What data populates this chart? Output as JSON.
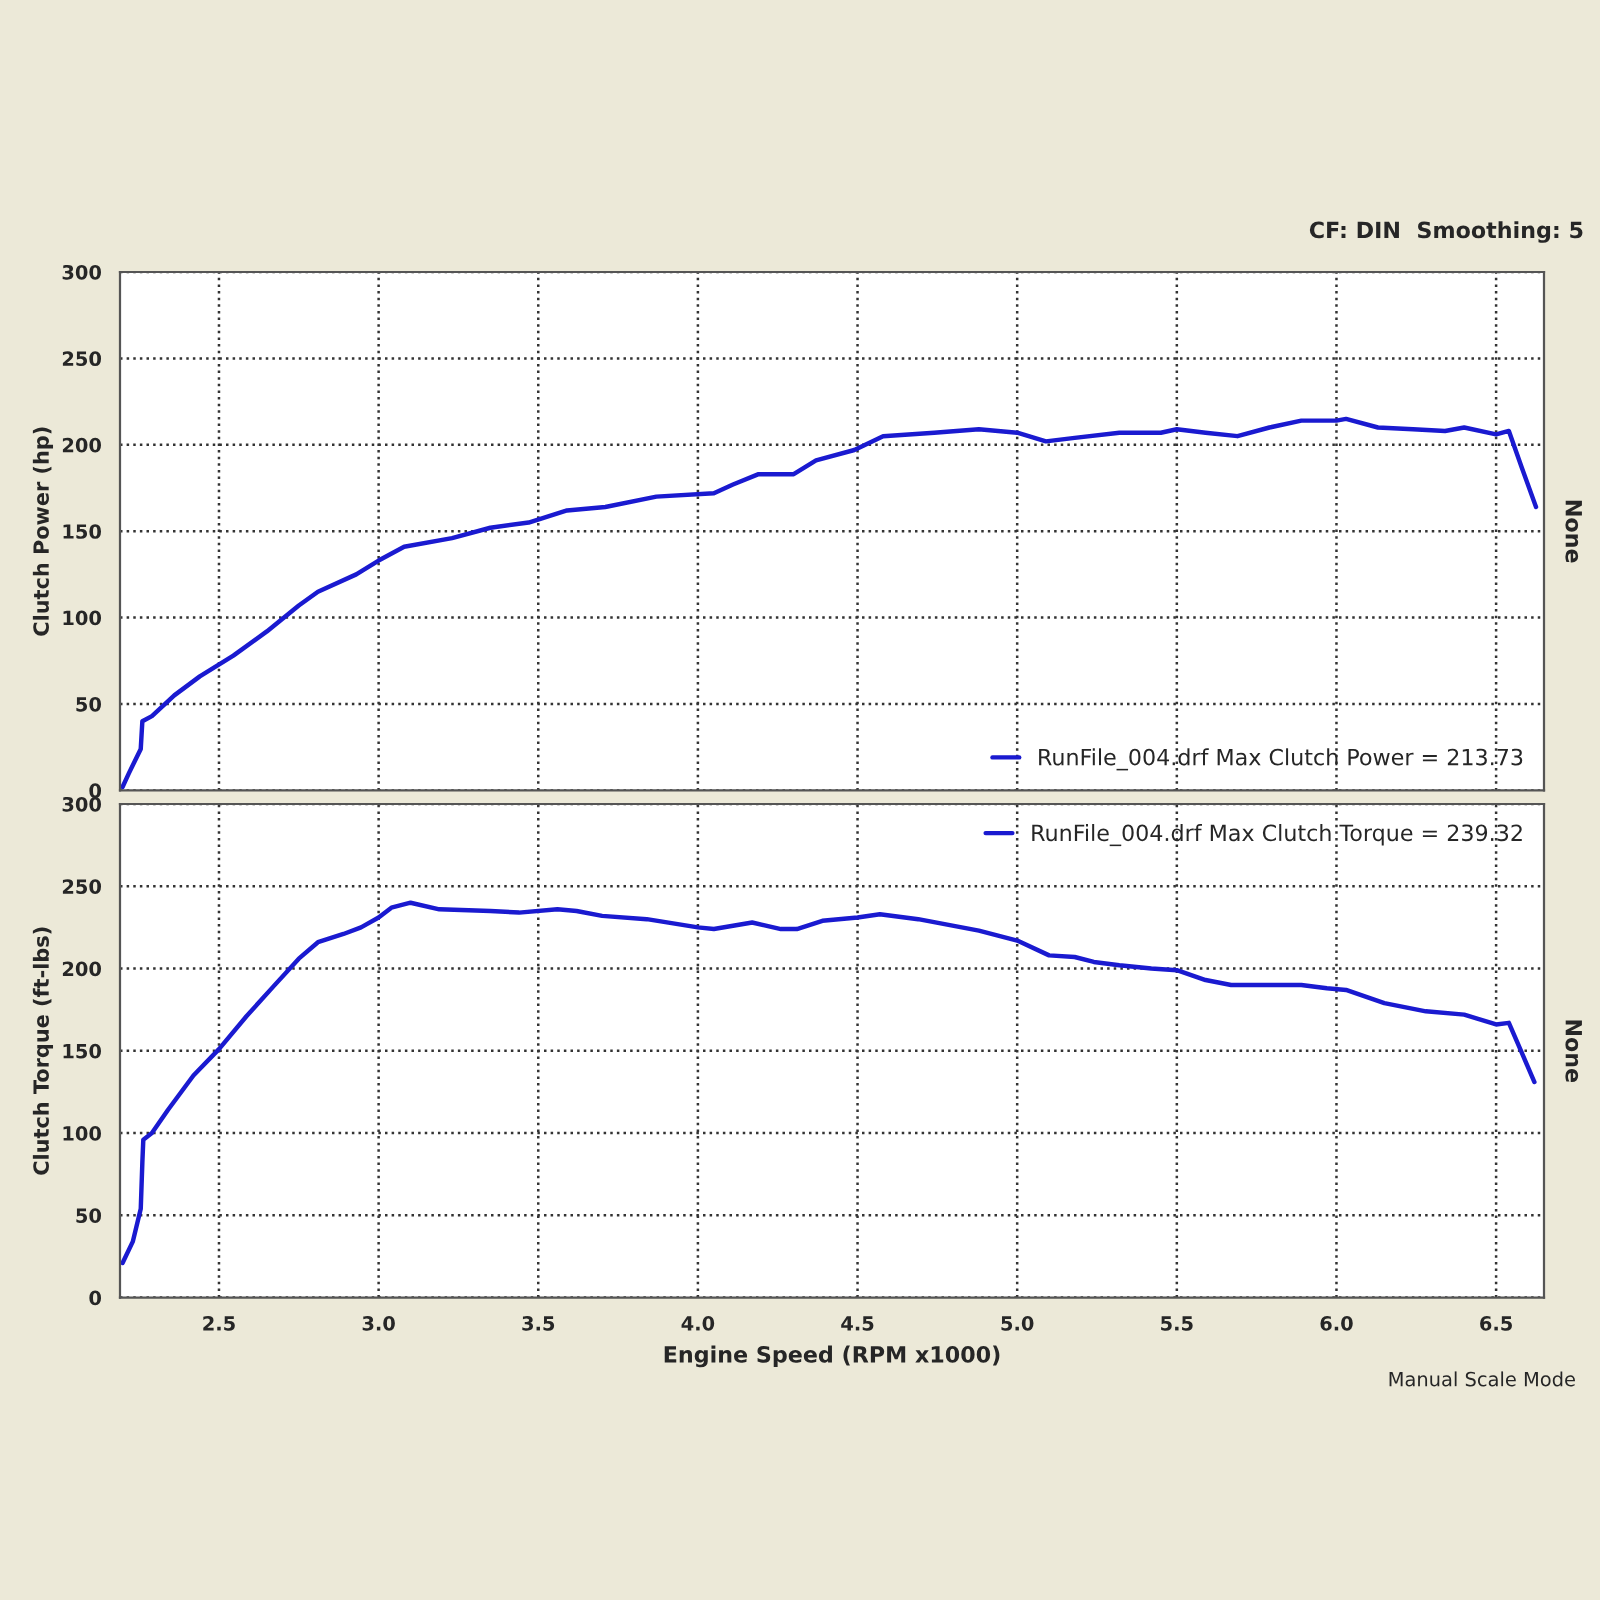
{
  "chart_data": [
    {
      "type": "line",
      "ylabel": "Clutch Power (hp)",
      "y2label": "None",
      "annotations": [
        "CF: DIN  Smoothing: 5"
      ],
      "xlim": [
        2.19,
        6.65
      ],
      "xticks": [
        {
          "value": 2.5,
          "label": null
        },
        {
          "value": 3,
          "label": null
        },
        {
          "value": 3.5,
          "label": null
        },
        {
          "value": 4,
          "label": null
        },
        {
          "value": 4.5,
          "label": null
        },
        {
          "value": 5,
          "label": null
        },
        {
          "value": 5.5,
          "label": null
        },
        {
          "value": 6,
          "label": null
        },
        {
          "value": 6.5,
          "label": null
        }
      ],
      "ylim": [
        0,
        300
      ],
      "yticks": [
        0,
        50,
        100,
        150,
        200,
        250,
        300
      ],
      "tick_labels": "y",
      "grid": true,
      "legend": "bottom right",
      "line_style": "solid",
      "marker": "none",
      "series": [
        {
          "name": "RunFile_004.drf Max Clutch Power = 213.73",
          "color": "#1a1ad0",
          "x": [
            2.198,
            2.218,
            2.255,
            2.26,
            2.29,
            2.36,
            2.44,
            2.545,
            2.65,
            2.75,
            2.81,
            2.93,
            3.0,
            3.08,
            3.23,
            3.35,
            3.47,
            3.59,
            3.71,
            3.87,
            4.05,
            4.11,
            4.19,
            4.3,
            4.37,
            4.49,
            4.58,
            4.74,
            4.88,
            5.0,
            5.09,
            5.18,
            5.32,
            5.45,
            5.5,
            5.59,
            5.69,
            5.79,
            5.89,
            6.0,
            6.03,
            6.13,
            6.24,
            6.34,
            6.4,
            6.5,
            6.54,
            6.58,
            6.625
          ],
          "values": [
            2,
            10,
            24,
            40,
            43,
            55,
            66,
            78,
            92,
            107,
            115,
            125,
            133,
            141,
            146,
            152,
            155,
            162,
            164,
            170,
            172,
            177,
            183,
            183,
            191,
            197,
            205,
            207,
            209,
            207,
            202,
            204,
            207,
            207,
            209,
            207,
            205,
            210,
            214,
            214,
            215,
            210,
            209,
            208,
            210,
            206,
            208,
            187,
            164
          ]
        }
      ]
    },
    {
      "type": "line",
      "ylabel": "Clutch Torque (ft-lbs)",
      "y2label": "None",
      "xlabel": "Engine Speed (RPM x1000)",
      "annotations": [
        "Manual Scale Mode"
      ],
      "xlim": [
        2.19,
        6.65
      ],
      "xticks": [
        {
          "value": 2.5,
          "label": "2.5"
        },
        {
          "value": 3,
          "label": "3.0"
        },
        {
          "value": 3.5,
          "label": "3.5"
        },
        {
          "value": 4,
          "label": "4.0"
        },
        {
          "value": 4.5,
          "label": "4.5"
        },
        {
          "value": 5,
          "label": "5.0"
        },
        {
          "value": 5.5,
          "label": "5.5"
        },
        {
          "value": 6,
          "label": "6.0"
        },
        {
          "value": 6.5,
          "label": "6.5"
        }
      ],
      "ylim": [
        0,
        300
      ],
      "yticks": [
        0,
        50,
        100,
        150,
        200,
        250,
        300
      ],
      "grid": true,
      "legend": "top right",
      "line_style": "solid",
      "marker": "none",
      "series": [
        {
          "name": "RunFile_004.drf Max Clutch Torque = 239.32",
          "color": "#1a1ad0",
          "x": [
            2.198,
            2.23,
            2.255,
            2.26,
            2.263,
            2.29,
            2.34,
            2.42,
            2.5,
            2.586,
            2.67,
            2.75,
            2.81,
            2.89,
            2.945,
            3.0,
            3.04,
            3.1,
            3.19,
            3.35,
            3.44,
            3.56,
            3.62,
            3.7,
            3.84,
            4.0,
            4.05,
            4.17,
            4.26,
            4.31,
            4.39,
            4.5,
            4.57,
            4.69,
            4.88,
            5.0,
            5.1,
            5.18,
            5.24,
            5.32,
            5.42,
            5.5,
            5.59,
            5.67,
            5.89,
            5.97,
            6.03,
            6.15,
            6.28,
            6.4,
            6.5,
            6.54,
            6.58,
            6.62
          ],
          "values": [
            21,
            34,
            54,
            82,
            96,
            100,
            114,
            135,
            151,
            171,
            189,
            206,
            216,
            221,
            225,
            231,
            237,
            240,
            236,
            235,
            234,
            236,
            235,
            232,
            230,
            225,
            224,
            228,
            224,
            224,
            229,
            231,
            233,
            230,
            223,
            217,
            208,
            207,
            204,
            202,
            200,
            199,
            193,
            190,
            190,
            188,
            187,
            179,
            174,
            172,
            166,
            167,
            149,
            131
          ]
        }
      ]
    }
  ]
}
